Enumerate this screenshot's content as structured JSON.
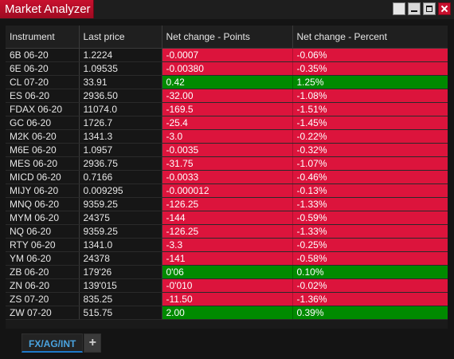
{
  "window": {
    "title": "Market Analyzer",
    "controls": [
      "restore-icon",
      "minimize-icon",
      "maximize-icon",
      "close-icon"
    ]
  },
  "grid": {
    "columns": [
      "Instrument",
      "Last price",
      "Net change - Points",
      "Net change - Percent"
    ],
    "rows": [
      {
        "instrument": "6B 06-20",
        "last": "1.2224",
        "points": "-0.0007",
        "percent": "-0.06%",
        "dir": "neg"
      },
      {
        "instrument": "6E 06-20",
        "last": "1.09535",
        "points": "-0.00380",
        "percent": "-0.35%",
        "dir": "neg"
      },
      {
        "instrument": "CL 07-20",
        "last": "33.91",
        "points": "0.42",
        "percent": "1.25%",
        "dir": "pos"
      },
      {
        "instrument": "ES 06-20",
        "last": "2936.50",
        "points": "-32.00",
        "percent": "-1.08%",
        "dir": "neg"
      },
      {
        "instrument": "FDAX 06-20",
        "last": "11074.0",
        "points": "-169.5",
        "percent": "-1.51%",
        "dir": "neg"
      },
      {
        "instrument": "GC 06-20",
        "last": "1726.7",
        "points": "-25.4",
        "percent": "-1.45%",
        "dir": "neg"
      },
      {
        "instrument": "M2K 06-20",
        "last": "1341.3",
        "points": "-3.0",
        "percent": "-0.22%",
        "dir": "neg"
      },
      {
        "instrument": "M6E 06-20",
        "last": "1.0957",
        "points": "-0.0035",
        "percent": "-0.32%",
        "dir": "neg"
      },
      {
        "instrument": "MES 06-20",
        "last": "2936.75",
        "points": "-31.75",
        "percent": "-1.07%",
        "dir": "neg"
      },
      {
        "instrument": "MICD 06-20",
        "last": "0.7166",
        "points": "-0.0033",
        "percent": "-0.46%",
        "dir": "neg"
      },
      {
        "instrument": "MIJY 06-20",
        "last": "0.009295",
        "points": "-0.000012",
        "percent": "-0.13%",
        "dir": "neg"
      },
      {
        "instrument": "MNQ 06-20",
        "last": "9359.25",
        "points": "-126.25",
        "percent": "-1.33%",
        "dir": "neg"
      },
      {
        "instrument": "MYM 06-20",
        "last": "24375",
        "points": "-144",
        "percent": "-0.59%",
        "dir": "neg"
      },
      {
        "instrument": "NQ 06-20",
        "last": "9359.25",
        "points": "-126.25",
        "percent": "-1.33%",
        "dir": "neg"
      },
      {
        "instrument": "RTY 06-20",
        "last": "1341.0",
        "points": "-3.3",
        "percent": "-0.25%",
        "dir": "neg"
      },
      {
        "instrument": "YM 06-20",
        "last": "24378",
        "points": "-141",
        "percent": "-0.58%",
        "dir": "neg"
      },
      {
        "instrument": "ZB 06-20",
        "last": "179'26",
        "points": "0'06",
        "percent": "0.10%",
        "dir": "pos"
      },
      {
        "instrument": "ZN 06-20",
        "last": "139'015",
        "points": "-0'010",
        "percent": "-0.02%",
        "dir": "neg"
      },
      {
        "instrument": "ZS 07-20",
        "last": "835.25",
        "points": "-11.50",
        "percent": "-1.36%",
        "dir": "neg"
      },
      {
        "instrument": "ZW 07-20",
        "last": "515.75",
        "points": "2.00",
        "percent": "0.39%",
        "dir": "pos"
      }
    ]
  },
  "tabs": [
    {
      "label": "FX/AG/INT",
      "active": true
    }
  ],
  "add_tab_label": "+",
  "colors": {
    "negative": "#dc143c",
    "positive": "#008a00",
    "title_bar": "#c8102e",
    "active_tab_text": "#4aa3df"
  }
}
